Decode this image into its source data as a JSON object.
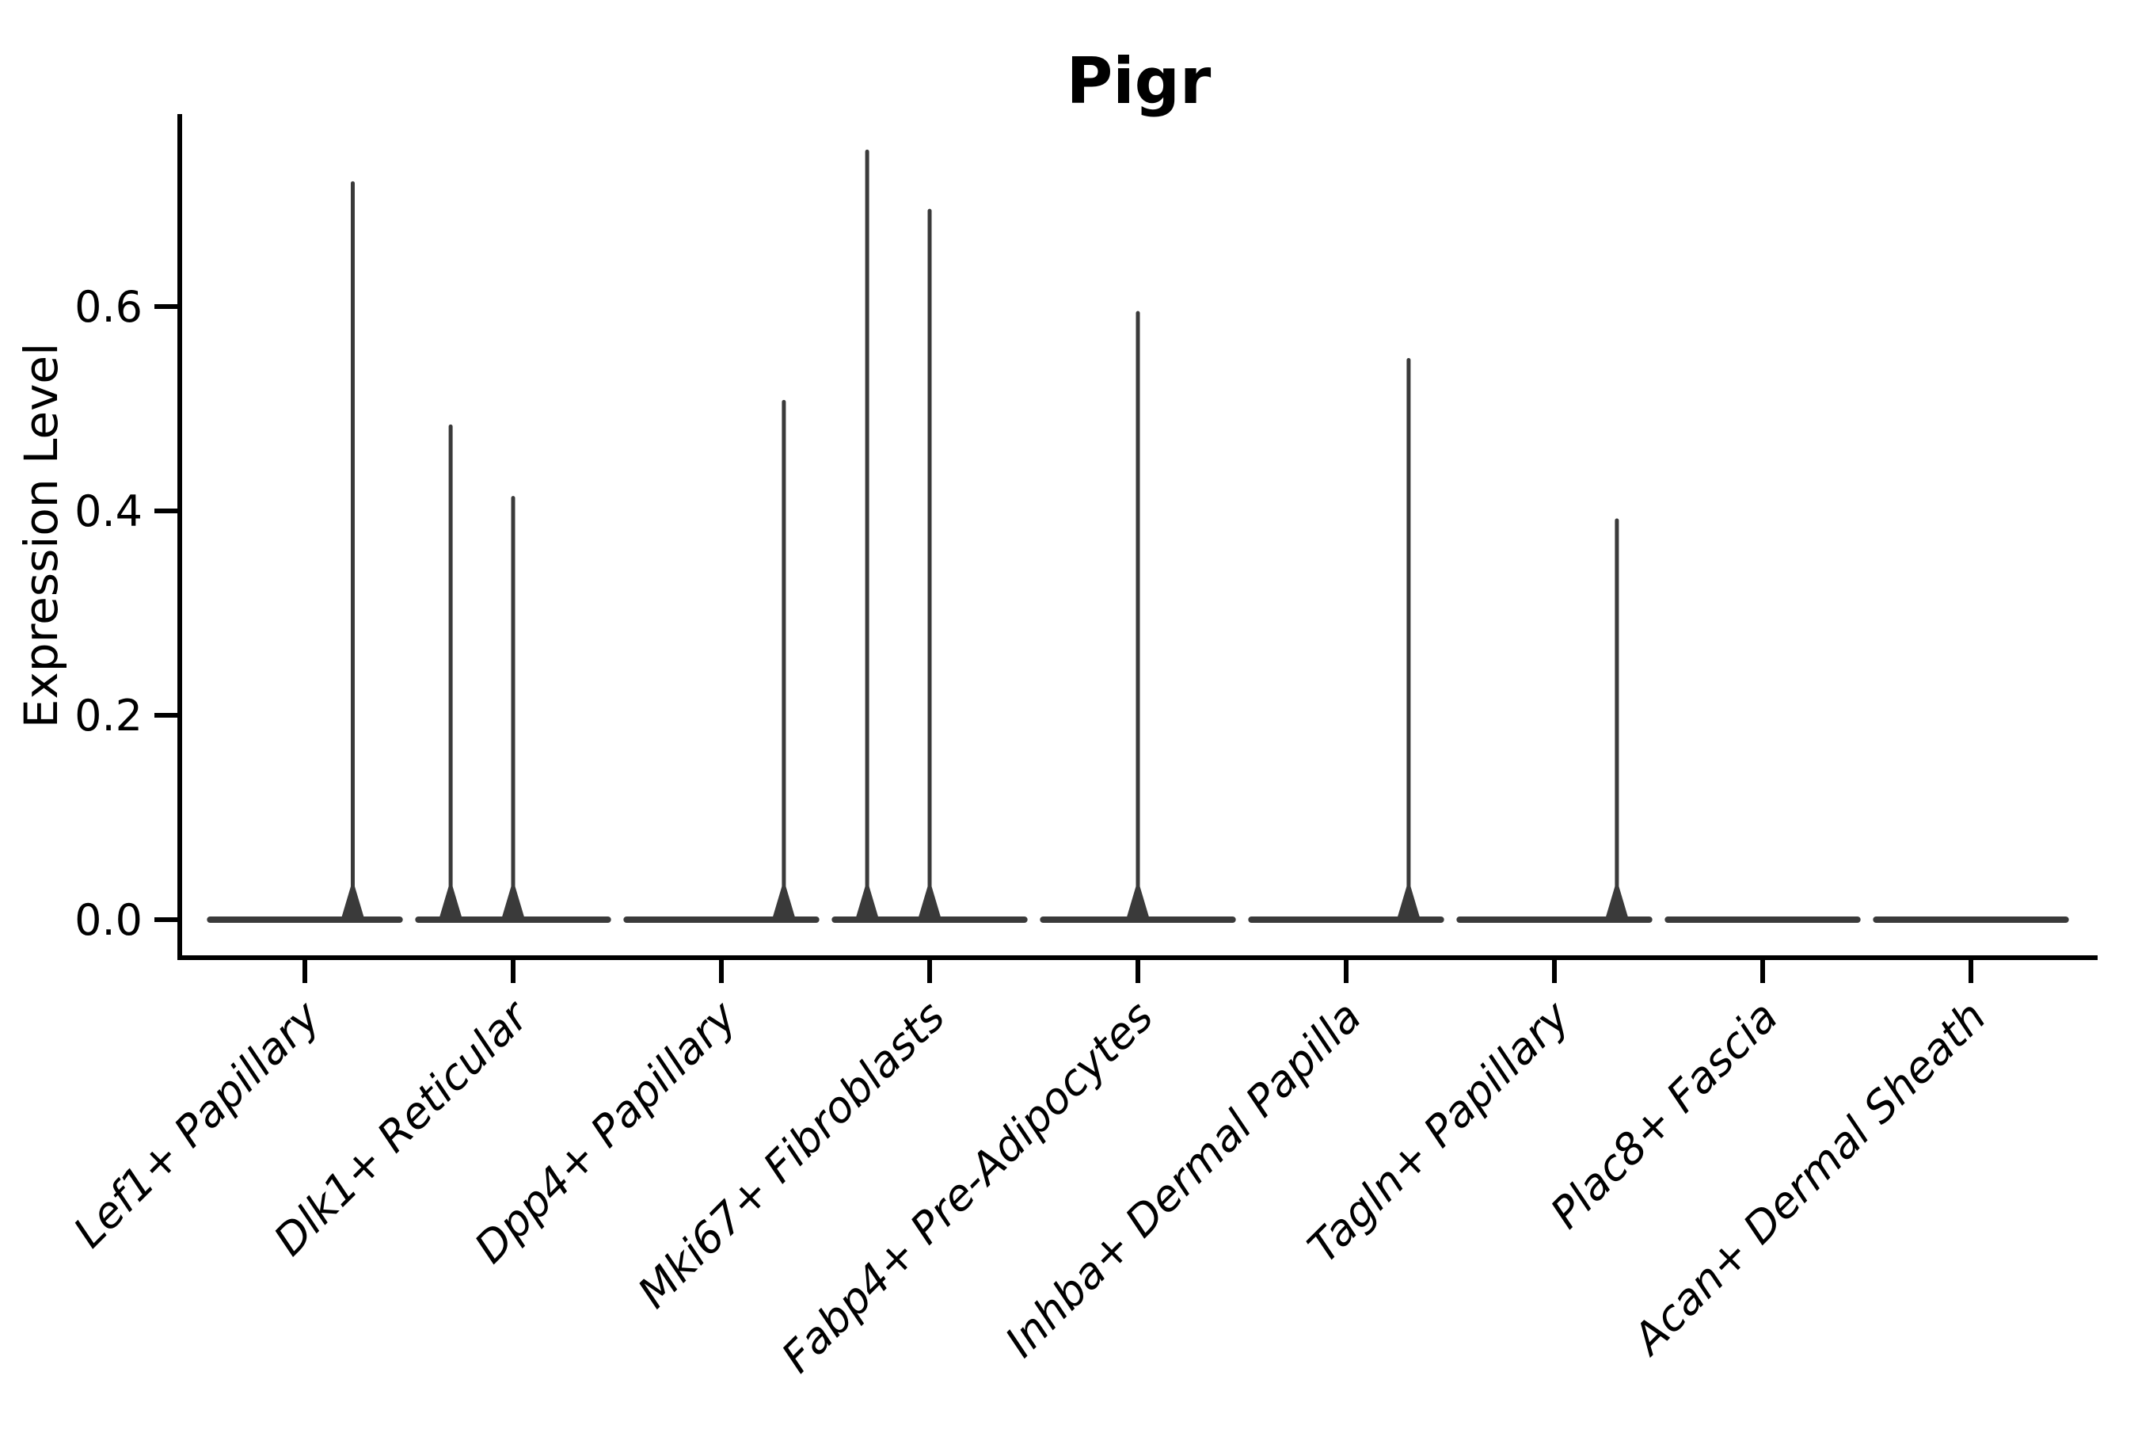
{
  "title": "Pigr",
  "chart_data": {
    "type": "violin",
    "title": "Pigr",
    "xlabel": "",
    "ylabel": "Expression Level",
    "ylim": [
      0.0,
      0.788
    ],
    "yticks": [
      0.0,
      0.2,
      0.4,
      0.6
    ],
    "ytick_labels": [
      "0.0",
      "0.2",
      "0.4",
      "0.6"
    ],
    "grid": false,
    "legend": "none",
    "x_tick_rotation_deg": 45,
    "baseline_halfwidth_frac": 0.455,
    "categories": [
      "Lef1+ Papillary",
      "Dlk1+ Reticular",
      "Dpp4+ Papillary",
      "Mki67+ Fibroblasts",
      "Fabp4+ Pre-Adipocytes",
      "Inhba+ Dermal Papilla",
      "Tagln+ Papillary",
      "Plac8+ Fascia",
      "Acan+ Dermal Sheath"
    ],
    "violins": [
      {
        "label": "Lef1+ Papillary",
        "baseline_value": 0.0,
        "spikes": [
          {
            "offset": 0.23,
            "value": 0.723
          }
        ]
      },
      {
        "label": "Dlk1+ Reticular",
        "baseline_value": 0.0,
        "spikes": [
          {
            "offset": -0.3,
            "value": 0.485
          },
          {
            "offset": 0.0,
            "value": 0.415
          }
        ]
      },
      {
        "label": "Dpp4+ Papillary",
        "baseline_value": 0.0,
        "spikes": [
          {
            "offset": 0.3,
            "value": 0.509
          }
        ]
      },
      {
        "label": "Mki67+ Fibroblasts",
        "baseline_value": 0.0,
        "spikes": [
          {
            "offset": -0.3,
            "value": 0.754
          },
          {
            "offset": 0.0,
            "value": 0.696
          }
        ]
      },
      {
        "label": "Fabp4+ Pre-Adipocytes",
        "baseline_value": 0.0,
        "spikes": [
          {
            "offset": 0.0,
            "value": 0.596
          }
        ]
      },
      {
        "label": "Inhba+ Dermal Papilla",
        "baseline_value": 0.0,
        "spikes": [
          {
            "offset": 0.3,
            "value": 0.55
          }
        ]
      },
      {
        "label": "Tagln+ Papillary",
        "baseline_value": 0.0,
        "spikes": [
          {
            "offset": 0.3,
            "value": 0.393
          }
        ]
      },
      {
        "label": "Plac8+ Fascia",
        "baseline_value": 0.0,
        "spikes": []
      },
      {
        "label": "Acan+ Dermal Sheath",
        "baseline_value": 0.0,
        "spikes": []
      }
    ],
    "colors": {
      "violin": "#3a3a3a",
      "axis": "#000000",
      "text": "#000000",
      "background": "#ffffff"
    }
  }
}
